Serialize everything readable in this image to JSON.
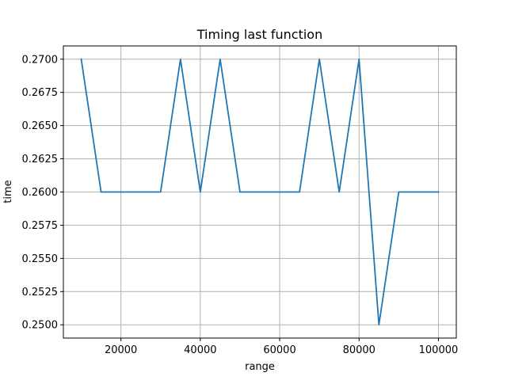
{
  "chart_data": {
    "type": "line",
    "title": "Timing last function",
    "xlabel": "range",
    "ylabel": "time",
    "xlim": [
      5500,
      104500
    ],
    "ylim": [
      0.249,
      0.271
    ],
    "grid": true,
    "x_ticks": [
      20000,
      40000,
      60000,
      80000,
      100000
    ],
    "x_tick_labels": [
      "20000",
      "40000",
      "60000",
      "80000",
      "100000"
    ],
    "y_ticks": [
      0.25,
      0.2525,
      0.255,
      0.2575,
      0.26,
      0.2625,
      0.265,
      0.2675,
      0.27
    ],
    "y_tick_labels": [
      "0.2500",
      "0.2525",
      "0.2550",
      "0.2575",
      "0.2600",
      "0.2625",
      "0.2650",
      "0.2675",
      "0.2700"
    ],
    "series": [
      {
        "color": "#1f77b4",
        "x": [
          10000,
          15000,
          20000,
          25000,
          30000,
          35000,
          40000,
          45000,
          50000,
          55000,
          60000,
          65000,
          70000,
          75000,
          80000,
          85000,
          90000,
          95000,
          100000
        ],
        "y": [
          0.27,
          0.26,
          0.26,
          0.26,
          0.26,
          0.27,
          0.26,
          0.27,
          0.26,
          0.26,
          0.26,
          0.26,
          0.27,
          0.26,
          0.27,
          0.25,
          0.26,
          0.26,
          0.26
        ]
      }
    ]
  }
}
